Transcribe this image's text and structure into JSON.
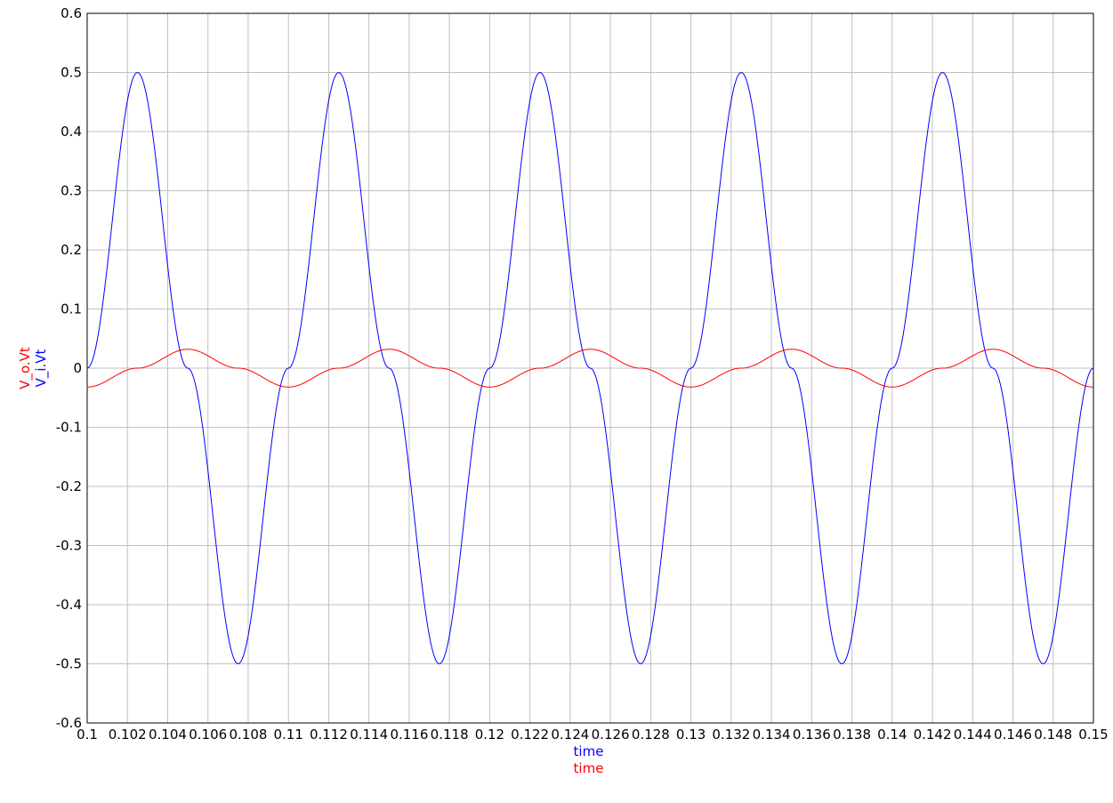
{
  "chart_data": {
    "type": "line",
    "title": "",
    "x_axis": {
      "labels": [
        {
          "text": "time",
          "color": "#0000ff"
        },
        {
          "text": "time",
          "color": "#ff0000"
        }
      ],
      "range": [
        0.1,
        0.15
      ],
      "ticks": [
        0.1,
        0.102,
        0.104,
        0.106,
        0.108,
        0.11,
        0.112,
        0.114,
        0.116,
        0.118,
        0.12,
        0.122,
        0.124,
        0.126,
        0.128,
        0.13,
        0.132,
        0.134,
        0.136,
        0.138,
        0.14,
        0.142,
        0.144,
        0.146,
        0.148,
        0.15
      ],
      "tick_labels": [
        "0.1",
        "0.102",
        "0.104",
        "0.106",
        "0.108",
        "0.11",
        "0.112",
        "0.114",
        "0.116",
        "0.118",
        "0.12",
        "0.122",
        "0.124",
        "0.126",
        "0.128",
        "0.13",
        "0.132",
        "0.134",
        "0.136",
        "0.138",
        "0.14",
        "0.142",
        "0.144",
        "0.146",
        "0.148",
        "0.15"
      ]
    },
    "y_axis": {
      "labels": [
        {
          "text": "V_o.Vt",
          "color": "#ff0000"
        },
        {
          "text": "V_i.Vt",
          "color": "#0000ff"
        }
      ],
      "range": [
        -0.6,
        0.6
      ],
      "ticks": [
        -0.6,
        -0.5,
        -0.4,
        -0.3,
        -0.2,
        -0.1,
        0,
        0.1,
        0.2,
        0.3,
        0.4,
        0.5,
        0.6
      ],
      "tick_labels": [
        "-0.6",
        "-0.5",
        "-0.4",
        "-0.3",
        "-0.2",
        "-0.1",
        "0",
        "0.1",
        "0.2",
        "0.3",
        "0.4",
        "0.5",
        "0.6"
      ]
    },
    "grid": true,
    "series": [
      {
        "name": "V_i.Vt",
        "color": "#0000ff",
        "x": [
          0.1,
          0.1025,
          0.105,
          0.1075,
          0.11,
          0.1125,
          0.115,
          0.1175,
          0.12,
          0.1225,
          0.125,
          0.1275,
          0.13,
          0.1325,
          0.135,
          0.1375,
          0.14,
          0.1425,
          0.145,
          0.1475,
          0.15
        ],
        "y": [
          0,
          0.5,
          0,
          -0.5,
          0,
          0.5,
          0,
          -0.5,
          0,
          0.5,
          0,
          -0.5,
          0,
          0.5,
          0,
          -0.5,
          0,
          0.5,
          0,
          -0.5,
          0
        ]
      },
      {
        "name": "V_o.Vt",
        "color": "#ff0000",
        "x": [
          0.1,
          0.1025,
          0.105,
          0.1075,
          0.11,
          0.1125,
          0.115,
          0.1175,
          0.12,
          0.1225,
          0.125,
          0.1275,
          0.13,
          0.1325,
          0.135,
          0.1375,
          0.14,
          0.1425,
          0.145,
          0.1475,
          0.15
        ],
        "y": [
          -0.032,
          0,
          0.032,
          0,
          -0.032,
          0,
          0.032,
          0,
          -0.032,
          0,
          0.032,
          0,
          -0.032,
          0,
          0.032,
          0,
          -0.032,
          0,
          0.032,
          0,
          -0.032
        ]
      }
    ]
  }
}
